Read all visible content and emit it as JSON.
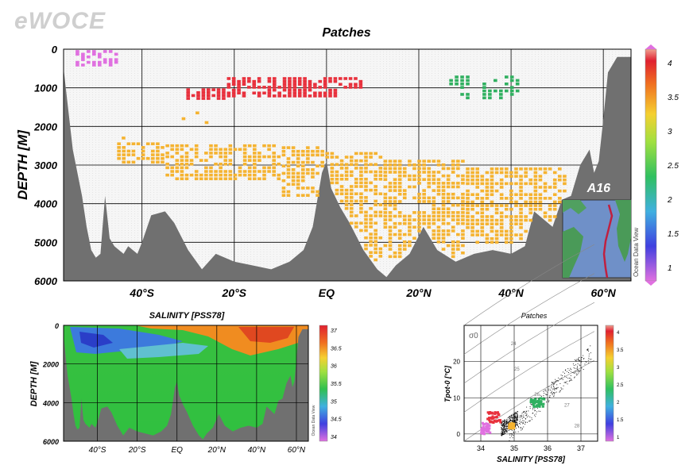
{
  "brand": "eWOCE",
  "main_panel": {
    "title": "Patches",
    "ylabel": "DEPTH [M]",
    "y_ticks": [
      "0",
      "1000",
      "2000",
      "3000",
      "4000",
      "5000",
      "6000"
    ],
    "x_ticks": [
      "40°S",
      "20°S",
      "EQ",
      "20°N",
      "40°N",
      "60°N"
    ],
    "inset_title": "A16",
    "inset_vertical_label": "Ocean Data View",
    "colorbar_ticks": [
      "4",
      "3.5",
      "3",
      "2.5",
      "2",
      "1.5",
      "1"
    ],
    "colors": {
      "bottom": "#707070",
      "stations": "#9a9a9a"
    }
  },
  "salinity_panel": {
    "title": "SALINITY [PSS78]",
    "ylabel": "DEPTH [M]",
    "y_ticks": [
      "0",
      "2000",
      "4000",
      "6000"
    ],
    "x_ticks": [
      "40°S",
      "20°S",
      "EQ",
      "20°N",
      "40°N",
      "60°N"
    ],
    "colorbar_ticks": [
      "37",
      "36.5",
      "36",
      "35.5",
      "35",
      "34.5",
      "34"
    ],
    "vertical_label": "Ocean Data View"
  },
  "ts_panel": {
    "title": "Patches",
    "xlabel": "SALINITY [PSS78]",
    "ylabel": "Tpot-0 [°C]",
    "sigma_label": "σ0",
    "x_ticks": [
      "34",
      "35",
      "36",
      "37"
    ],
    "y_ticks": [
      "0",
      "10",
      "20"
    ],
    "colorbar_ticks": [
      "4",
      "3.5",
      "3",
      "2.5",
      "2",
      "1.5",
      "1"
    ],
    "isopycnal_labels": [
      "24",
      "25",
      "26",
      "27",
      "28"
    ]
  },
  "chart_data": [
    {
      "type": "scatter",
      "title": "Patches",
      "ylabel": "DEPTH [M]",
      "x_unit": "latitude (negative = south)",
      "xlim": [
        -57,
        66
      ],
      "ylim": [
        6000,
        0
      ],
      "colorbar": {
        "range": [
          1,
          4
        ],
        "ticks": [
          1,
          1.5,
          2,
          2.5,
          3,
          3.5,
          4
        ]
      },
      "series": [
        {
          "patch_value": 1,
          "color": "#e070e0",
          "lat_range": [
            -54,
            -45
          ],
          "depth_range": [
            50,
            450
          ]
        },
        {
          "patch_value": 3.7,
          "color": "#e8303c",
          "lat_range": [
            -30,
            8
          ],
          "depth_range": [
            750,
            1250
          ]
        },
        {
          "patch_value": 2.1,
          "color": "#30b060",
          "lat_range": [
            27,
            42
          ],
          "depth_range": [
            700,
            1300
          ]
        },
        {
          "patch_value": 3.1,
          "color": "#f5b330",
          "lat_range": [
            -45,
            52
          ],
          "depth_range": [
            2300,
            5600
          ]
        }
      ],
      "bottom_depth_profile": {
        "lat": [
          -57,
          -55,
          -53,
          -52,
          -51,
          -50,
          -49,
          -48,
          -47,
          -46,
          -45,
          -44,
          -43,
          -42,
          -41,
          -40,
          -38,
          -35,
          -33,
          -30,
          -27,
          -24,
          -20,
          -16,
          -12,
          -8,
          -5,
          -3,
          -1,
          0,
          1,
          3,
          5,
          8,
          11,
          13,
          15,
          18,
          21,
          24,
          28,
          32,
          36,
          40,
          43,
          45,
          47,
          49,
          51,
          53,
          55,
          57,
          58,
          59,
          60,
          61,
          62,
          63,
          66
        ],
        "depth": [
          500,
          2600,
          3800,
          4600,
          5200,
          5400,
          5300,
          3800,
          4900,
          5100,
          5200,
          5300,
          5100,
          5200,
          5300,
          5000,
          4300,
          4200,
          4500,
          5200,
          5700,
          5300,
          5500,
          5600,
          5700,
          5500,
          5200,
          4600,
          3200,
          2900,
          3600,
          4100,
          4500,
          5200,
          5700,
          5900,
          5600,
          5300,
          4600,
          5200,
          5500,
          5300,
          5200,
          5300,
          5100,
          4200,
          4400,
          4600,
          3900,
          3800,
          3000,
          2600,
          3200,
          2900,
          1800,
          600,
          400,
          200,
          200
        ]
      }
    },
    {
      "type": "heatmap",
      "title": "SALINITY [PSS78]",
      "ylabel": "DEPTH [M]",
      "xlim": [
        -57,
        66
      ],
      "ylim": [
        6000,
        0
      ],
      "colorbar": {
        "range": [
          34,
          37
        ],
        "ticks": [
          34,
          34.5,
          35,
          35.5,
          36,
          36.5,
          37
        ]
      }
    },
    {
      "type": "scatter",
      "title": "Patches",
      "xlabel": "SALINITY [PSS78]",
      "ylabel": "Tpot-0 [°C]",
      "xlim": [
        33.5,
        37.5
      ],
      "ylim": [
        -2,
        30
      ],
      "colorbar": {
        "range": [
          1,
          4
        ],
        "ticks": [
          1,
          1.5,
          2,
          2.5,
          3,
          3.5,
          4
        ]
      },
      "series": [
        {
          "patch_value": 1,
          "color": "#e070e0",
          "salinity_range": [
            34.0,
            34.3
          ],
          "temp_range": [
            0,
            3
          ]
        },
        {
          "patch_value": 3.7,
          "color": "#e8303c",
          "salinity_range": [
            34.2,
            34.6
          ],
          "temp_range": [
            3,
            6
          ]
        },
        {
          "patch_value": 2.1,
          "color": "#30b060",
          "salinity_range": [
            35.5,
            35.9
          ],
          "temp_range": [
            7.5,
            10
          ]
        },
        {
          "patch_value": 3.1,
          "color": "#f5b330",
          "salinity_range": [
            34.85,
            35.0
          ],
          "temp_range": [
            1.5,
            3
          ]
        }
      ]
    }
  ]
}
